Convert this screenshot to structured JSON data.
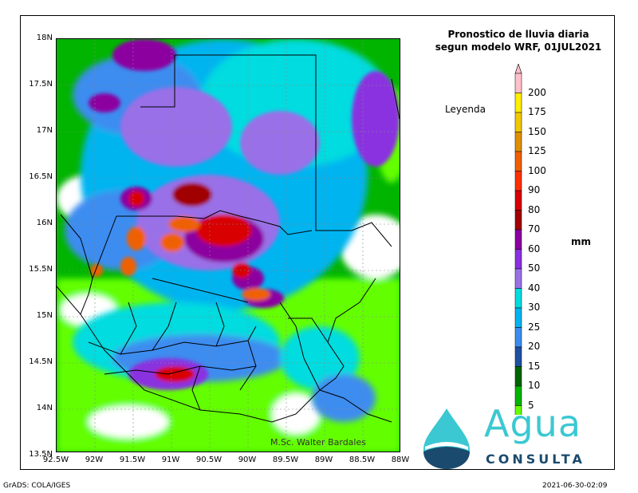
{
  "title": {
    "line1": "Pronostico de lluvia diaria",
    "line2": "segun modelo WRF,  01JUL2021"
  },
  "legend_label": "Leyenda",
  "unit_label": "mm",
  "credit": "M.Sc. Walter Bardales",
  "footer_left": "GrADS: COLA/IGES",
  "footer_right": "2021-06-30-02:09",
  "logo": {
    "word": "Agua",
    "sub": "CONSULTA"
  },
  "axes": {
    "y_ticks": [
      "18N",
      "17.5N",
      "17N",
      "16.5N",
      "16N",
      "15.5N",
      "15N",
      "14.5N",
      "14N",
      "13.5N"
    ],
    "x_ticks": [
      "92.5W",
      "92W",
      "91.5W",
      "91W",
      "90.5W",
      "90W",
      "89.5W",
      "89W",
      "88.5W",
      "88W"
    ]
  },
  "colorbar": {
    "levels": [
      "200",
      "175",
      "150",
      "125",
      "100",
      "90",
      "80",
      "70",
      "60",
      "50",
      "40",
      "30",
      "25",
      "20",
      "15",
      "10",
      "5"
    ],
    "colors": [
      "#ffc0cb",
      "#ffee00",
      "#f0c800",
      "#e09000",
      "#f06000",
      "#ff3000",
      "#d80000",
      "#a00000",
      "#8c00a0",
      "#8a30e0",
      "#9a70e8",
      "#00dce0",
      "#00b4f0",
      "#3c8cf0",
      "#1e50a0",
      "#006400",
      "#00b400",
      "#64ff00"
    ]
  },
  "colors": {
    "brand_teal": "#3cc8d2",
    "brand_navy": "#1a4a6e"
  }
}
